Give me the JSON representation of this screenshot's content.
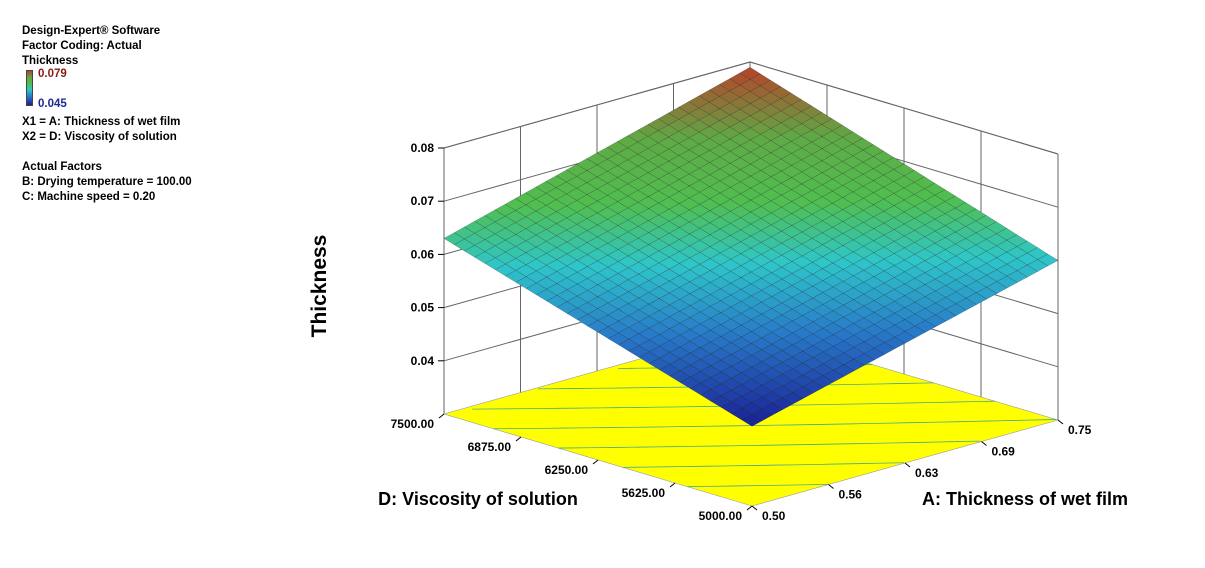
{
  "header": {
    "software": "Design-Expert® Software",
    "coding": "Factor Coding: Actual",
    "response": "Thickness",
    "color_high": "0.079",
    "color_low": "0.045",
    "x1": "X1 = A: Thickness of wet film",
    "x2": "X2 = D: Viscosity of solution",
    "actual_factors_title": "Actual Factors",
    "factor_b": "B: Drying temperature = 100.00",
    "factor_c": "C: Machine speed = 0.20"
  },
  "colors": {
    "surface_low": "#1f2fa8",
    "surface_mid_cyan": "#2fc6c9",
    "surface_mid_green": "#52b84a",
    "surface_high": "#b5422a",
    "floor": "#ffff00",
    "floor_contour": "#4aa88a",
    "grid": "#666666"
  },
  "chart_data": {
    "type": "surface3d",
    "title": "",
    "zlabel": "Thickness",
    "xlabel": "A: Thickness of wet film",
    "ylabel": "D: Viscosity of solution",
    "x_ticks": [
      "0.50",
      "0.56",
      "0.63",
      "0.69",
      "0.75"
    ],
    "y_ticks": [
      "5000.00",
      "5625.00",
      "6250.00",
      "6875.00",
      "7500.00"
    ],
    "z_ticks": [
      "0.04",
      "0.05",
      "0.06",
      "0.07",
      "0.08"
    ],
    "x_range": [
      0.5,
      0.75
    ],
    "y_range": [
      5000,
      7500
    ],
    "z_range": [
      0.03,
      0.08
    ],
    "corner_values": [
      {
        "A": 0.5,
        "D": 5000,
        "thickness": 0.045
      },
      {
        "A": 0.75,
        "D": 5000,
        "thickness": 0.06
      },
      {
        "A": 0.5,
        "D": 7500,
        "thickness": 0.063
      },
      {
        "A": 0.75,
        "D": 7500,
        "thickness": 0.079
      }
    ],
    "legend": {
      "high": 0.079,
      "low": 0.045
    },
    "grid": true
  }
}
